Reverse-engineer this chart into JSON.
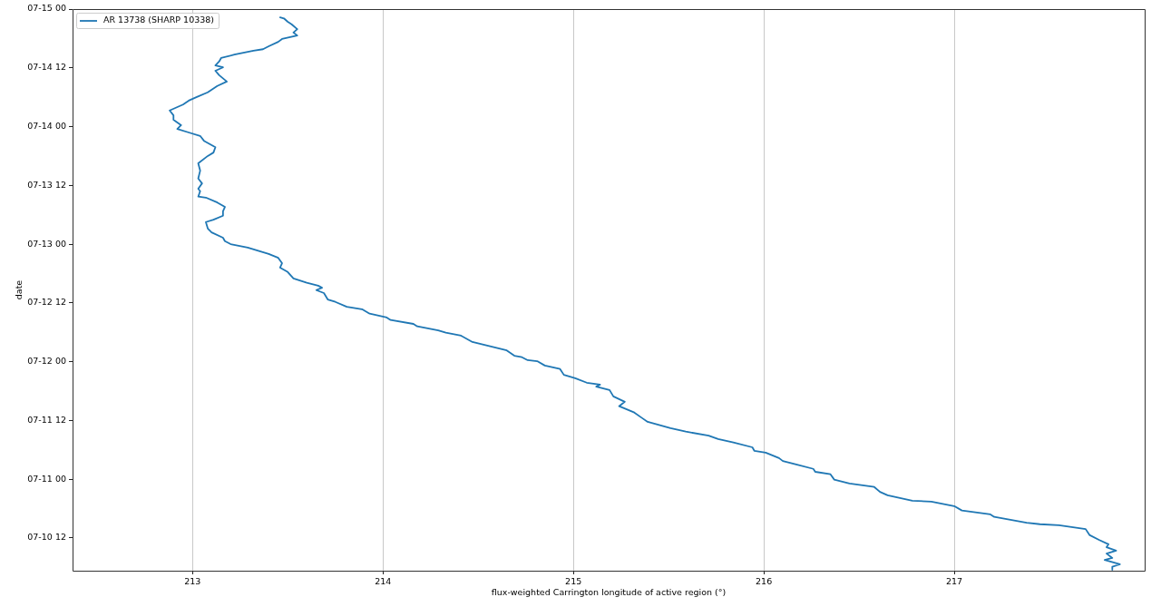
{
  "chart_data": {
    "type": "line",
    "orientation": "horizontal",
    "xlabel": "flux-weighted Carrington longitude of active region (°)",
    "ylabel": "date",
    "xlim": [
      212.37,
      218.0
    ],
    "xticks": [
      213,
      214,
      215,
      216,
      217
    ],
    "ylim": [
      "--07-10T05:18",
      "--07-15T00:00"
    ],
    "yticks": [
      {
        "value": "--07-10T12:00",
        "label": "07-10 12"
      },
      {
        "value": "--07-11T00:00",
        "label": "07-11 00"
      },
      {
        "value": "--07-11T12:00",
        "label": "07-11 12"
      },
      {
        "value": "--07-12T00:00",
        "label": "07-12 00"
      },
      {
        "value": "--07-12T12:00",
        "label": "07-12 12"
      },
      {
        "value": "--07-13T00:00",
        "label": "07-13 00"
      },
      {
        "value": "--07-13T12:00",
        "label": "07-13 12"
      },
      {
        "value": "--07-14T00:00",
        "label": "07-14 00"
      },
      {
        "value": "--07-14T12:00",
        "label": "07-14 12"
      },
      {
        "value": "--07-15T00:00",
        "label": "07-15 00"
      }
    ],
    "grid": "x",
    "legend": "top left",
    "series": [
      {
        "name": "AR 13738 (SHARP 10338)",
        "color": "#1f77b4",
        "x": [
          "--07-10T05:30",
          "--07-10T06:06",
          "--07-10T06:36",
          "--07-10T07:30",
          "--07-10T07:54",
          "--07-10T08:48",
          "--07-10T09:24",
          "--07-10T10:06",
          "--07-10T10:42",
          "--07-10T11:36",
          "--07-10T12:36",
          "--07-10T13:48",
          "--07-10T14:36",
          "--07-10T14:48",
          "--07-10T15:06",
          "--07-10T16:18",
          "--07-10T16:48",
          "--07-10T17:36",
          "--07-10T18:30",
          "--07-10T19:24",
          "--07-10T19:36",
          "--07-10T20:42",
          "--07-10T21:24",
          "--07-10T22:24",
          "--07-10T23:06",
          "--07-10T23:54",
          "--07-11T01:00",
          "--07-11T01:30",
          "--07-11T02:06",
          "--07-11T03:00",
          "--07-11T03:42",
          "--07-11T04:18",
          "--07-11T05:24",
          "--07-11T05:48",
          "--07-11T06:30",
          "--07-11T07:30",
          "--07-11T08:12",
          "--07-11T08:54",
          "--07-11T09:42",
          "--07-11T10:24",
          "--07-11T11:42",
          "--07-11T12:30",
          "--07-11T13:36",
          "--07-11T14:54",
          "--07-11T15:48",
          "--07-11T16:54",
          "--07-11T18:12",
          "--07-11T18:54",
          "--07-11T19:18",
          "--07-11T19:42",
          "--07-11T20:36",
          "--07-11T21:18",
          "--07-11T22:30",
          "--07-11T23:12",
          "--07-12T00:06",
          "--07-12T00:18",
          "--07-12T00:54",
          "--07-12T01:12",
          "--07-12T02:18",
          "--07-12T04:00",
          "--07-12T05:18",
          "--07-12T05:54",
          "--07-12T06:24",
          "--07-12T07:12",
          "--07-12T07:42",
          "--07-12T08:30",
          "--07-12T09:00",
          "--07-12T09:48",
          "--07-12T10:42",
          "--07-12T11:12",
          "--07-12T12:12",
          "--07-12T12:42",
          "--07-12T14:00",
          "--07-12T14:36",
          "--07-12T15:06",
          "--07-12T15:30",
          "--07-12T16:06",
          "--07-12T17:00",
          "--07-12T18:18",
          "--07-12T19:12",
          "--07-12T20:06",
          "--07-12T21:12",
          "--07-12T22:00",
          "--07-12T23:18",
          "--07-13T00:00",
          "--07-13T00:36",
          "--07-13T01:18",
          "--07-13T02:24",
          "--07-13T03:12",
          "--07-13T04:30",
          "--07-13T05:00",
          "--07-13T05:48",
          "--07-13T06:42",
          "--07-13T07:36",
          "--07-13T08:30",
          "--07-13T09:30",
          "--07-13T09:42",
          "--07-13T10:48",
          "--07-13T11:18",
          "--07-13T12:24",
          "--07-13T13:24",
          "--07-13T15:00",
          "--07-13T16:30",
          "--07-13T18:00",
          "--07-13T18:42",
          "--07-13T19:48",
          "--07-13T21:06",
          "--07-13T22:06",
          "--07-13T22:48",
          "--07-13T23:30",
          "--07-14T00:18",
          "--07-14T01:24",
          "--07-14T02:18",
          "--07-14T03:18",
          "--07-14T04:30",
          "--07-14T05:18",
          "--07-14T06:00",
          "--07-14T07:00",
          "--07-14T08:18",
          "--07-14T09:12",
          "--07-14T10:30",
          "--07-14T11:24",
          "--07-14T12:06",
          "--07-14T12:30",
          "--07-14T13:18",
          "--07-14T14:00",
          "--07-14T14:42",
          "--07-14T15:30",
          "--07-14T15:48",
          "--07-14T16:24",
          "--07-14T17:18",
          "--07-14T17:54",
          "--07-14T18:36",
          "--07-14T19:12",
          "--07-14T19:54",
          "--07-14T20:54",
          "--07-14T21:24",
          "--07-14T22:06",
          "--07-14T22:18"
        ],
        "values": [
          217.83,
          217.83,
          217.87,
          217.79,
          217.83,
          217.8,
          217.85,
          217.8,
          217.81,
          217.76,
          217.71,
          217.69,
          217.55,
          217.45,
          217.38,
          217.21,
          217.19,
          217.04,
          217.0,
          216.88,
          216.78,
          216.65,
          216.61,
          216.58,
          216.45,
          216.37,
          216.35,
          216.27,
          216.26,
          216.17,
          216.1,
          216.08,
          216.01,
          215.95,
          215.94,
          215.84,
          215.76,
          215.71,
          215.59,
          215.51,
          215.39,
          215.36,
          215.32,
          215.24,
          215.27,
          215.21,
          215.19,
          215.12,
          215.14,
          215.07,
          215.01,
          214.95,
          214.93,
          214.85,
          214.81,
          214.76,
          214.73,
          214.69,
          214.65,
          214.47,
          214.41,
          214.33,
          214.29,
          214.18,
          214.16,
          214.04,
          214.02,
          213.93,
          213.89,
          213.81,
          213.75,
          213.71,
          213.69,
          213.65,
          213.68,
          213.66,
          213.6,
          213.53,
          213.5,
          213.46,
          213.47,
          213.45,
          213.4,
          213.29,
          213.2,
          213.17,
          213.16,
          213.1,
          213.08,
          213.07,
          213.11,
          213.16,
          213.16,
          213.17,
          213.13,
          213.07,
          213.03,
          213.04,
          213.03,
          213.05,
          213.03,
          213.04,
          213.03,
          213.08,
          213.11,
          213.12,
          213.06,
          213.04,
          212.98,
          212.92,
          212.94,
          212.9,
          212.9,
          212.88,
          212.95,
          212.98,
          213.02,
          213.08,
          213.13,
          213.18,
          213.14,
          213.12,
          213.16,
          213.12,
          213.14,
          213.15,
          213.22,
          213.32,
          213.37,
          213.4,
          213.45,
          213.47,
          213.55,
          213.53,
          213.55,
          213.52,
          213.5,
          213.48,
          213.46
        ]
      }
    ]
  }
}
